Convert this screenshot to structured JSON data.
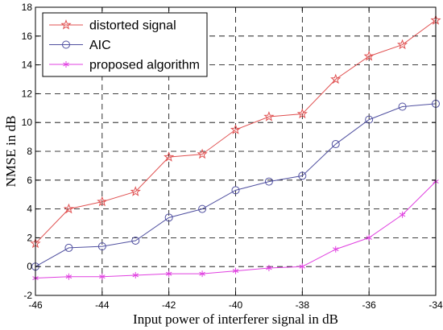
{
  "chart_data": {
    "type": "line",
    "title": "",
    "xlabel": "Input power of interferer signal in dB",
    "ylabel": "NMSE in dB",
    "xlim": [
      -46,
      -34
    ],
    "ylim": [
      -2,
      18
    ],
    "xticks": [
      -46,
      -44,
      -42,
      -40,
      -38,
      -36,
      -34
    ],
    "yticks": [
      -2,
      0,
      2,
      4,
      6,
      8,
      10,
      12,
      14,
      16,
      18
    ],
    "grid": true,
    "legend_position": "top-left",
    "x": [
      -46,
      -45,
      -44,
      -43,
      -42,
      -41,
      -40,
      -39,
      -38,
      -37,
      -36,
      -35,
      -34
    ],
    "series": [
      {
        "name": "distorted signal",
        "color": "#e05050",
        "marker": "star",
        "values": [
          1.6,
          4.0,
          4.5,
          5.2,
          7.6,
          7.8,
          9.5,
          10.4,
          10.6,
          13.0,
          14.6,
          15.4,
          17.1
        ]
      },
      {
        "name": "AIC",
        "color": "#5050a0",
        "marker": "circle",
        "values": [
          0.0,
          1.3,
          1.4,
          1.8,
          3.4,
          4.0,
          5.3,
          5.9,
          6.3,
          8.5,
          10.2,
          11.1,
          11.3
        ]
      },
      {
        "name": "proposed algorithm",
        "color": "#e040e0",
        "marker": "asterisk",
        "values": [
          -0.8,
          -0.7,
          -0.7,
          -0.6,
          -0.5,
          -0.5,
          -0.3,
          -0.1,
          0.0,
          1.2,
          2.0,
          3.6,
          5.9
        ]
      }
    ]
  }
}
